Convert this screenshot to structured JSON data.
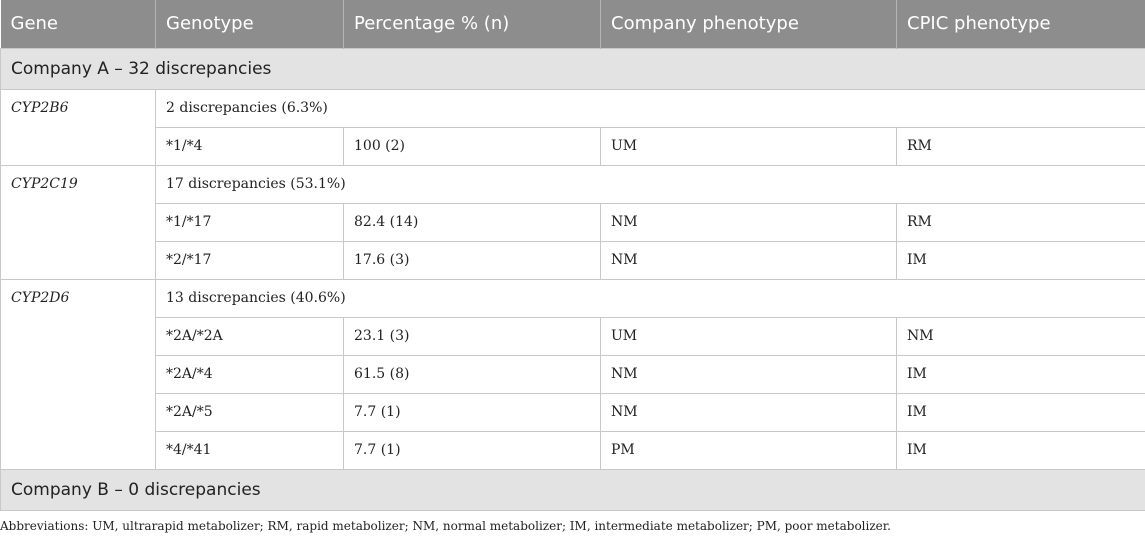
{
  "headers": [
    "Gene",
    "Genotype",
    "Percentage % (n)",
    "Company phenotype",
    "CPIC phenotype"
  ],
  "sections": [
    {
      "label": "Company A – 32 discrepancies",
      "genes": [
        {
          "name": "CYP2B6",
          "summary": "2 discrepancies (6.3%)",
          "rows": [
            {
              "genotype": "*1/*4",
              "percentage": "100 (2)",
              "company": "UM",
              "cpic": "RM"
            }
          ]
        },
        {
          "name": "CYP2C19",
          "summary": "17 discrepancies (53.1%)",
          "rows": [
            {
              "genotype": "*1/*17",
              "percentage": "82.4 (14)",
              "company": "NM",
              "cpic": "RM"
            },
            {
              "genotype": "*2/*17",
              "percentage": "17.6 (3)",
              "company": "NM",
              "cpic": "IM"
            }
          ]
        },
        {
          "name": "CYP2D6",
          "summary": "13 discrepancies (40.6%)",
          "rows": [
            {
              "genotype": "*2A/*2A",
              "percentage": "23.1 (3)",
              "company": "UM",
              "cpic": "NM"
            },
            {
              "genotype": "*2A/*4",
              "percentage": "61.5 (8)",
              "company": "NM",
              "cpic": "IM"
            },
            {
              "genotype": "*2A/*5",
              "percentage": "7.7 (1)",
              "company": "NM",
              "cpic": "IM"
            },
            {
              "genotype": "*4/*41",
              "percentage": "7.7 (1)",
              "company": "PM",
              "cpic": "IM"
            }
          ]
        }
      ]
    },
    {
      "label": "Company B – 0 discrepancies",
      "genes": []
    }
  ],
  "footnote": "Abbreviations: UM, ultrarapid metabolizer; RM, rapid metabolizer; NM, normal metabolizer; IM, intermediate metabolizer; PM, poor metabolizer."
}
